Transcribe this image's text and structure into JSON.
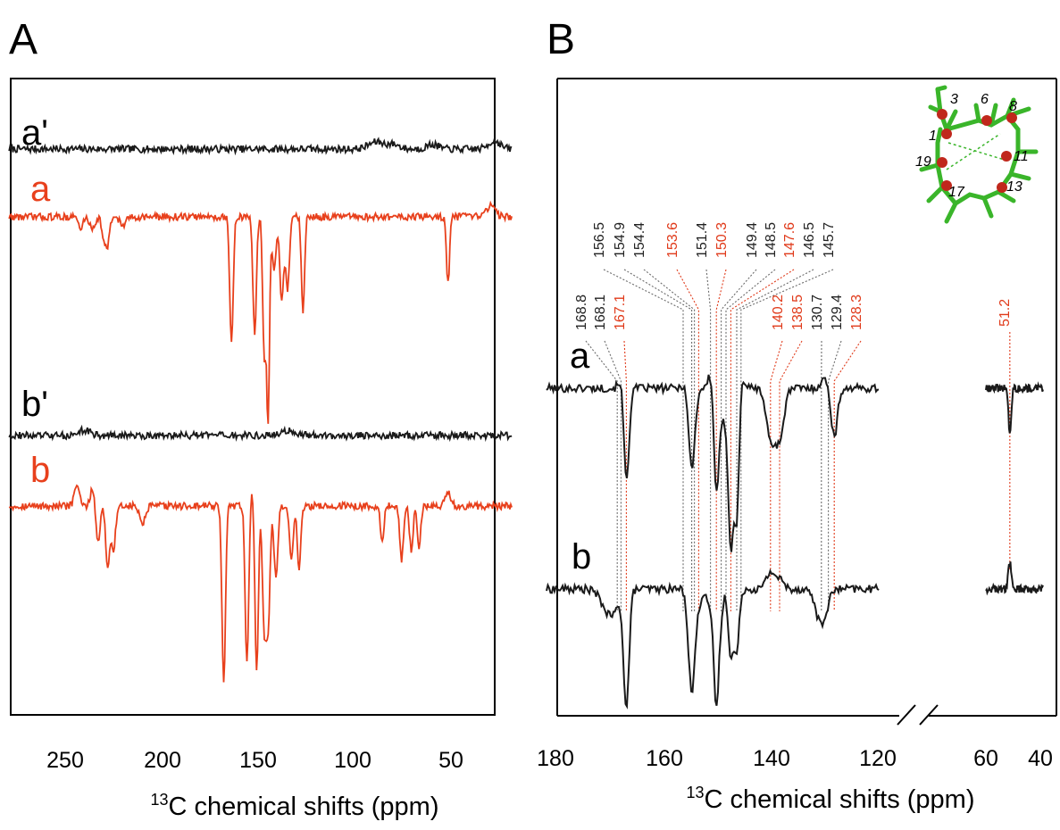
{
  "colors": {
    "black": "#1a1a1a",
    "red": "#e8401c",
    "red_label": "#e03a1a",
    "ref_black": "#6b6b6b"
  },
  "chart_data": [
    {
      "panel": "A",
      "type": "line",
      "xlabel_sup": "13",
      "xlabel_rest": "C chemical shifts (ppm)",
      "xlim": [
        279,
        19
      ],
      "x_reversed": true,
      "ticks": [
        "250",
        "200",
        "150",
        "100",
        "50"
      ],
      "tick_values": [
        250,
        200,
        150,
        100,
        50
      ],
      "grid": false,
      "series": [
        {
          "name": "a'",
          "color": "black",
          "features": [
            [
              89,
              8,
              4
            ],
            [
              80,
              5,
              3
            ],
            [
              60,
              5,
              3
            ],
            [
              28,
              9,
              3
            ]
          ]
        },
        {
          "name": "a",
          "color": "red",
          "features": [
            [
              164,
              -140,
              0.9
            ],
            [
              152,
              -130,
              0.9
            ],
            [
              147,
              -165,
              0.9
            ],
            [
              145,
              -220,
              0.7
            ],
            [
              142,
              -60,
              1.0
            ],
            [
              138,
              -95,
              1.0
            ],
            [
              135,
              -80,
              1.0
            ],
            [
              127,
              -110,
              0.8
            ],
            [
              52,
              -75,
              0.8
            ],
            [
              236,
              -12,
              1.5
            ],
            [
              230,
              -25,
              1.0
            ],
            [
              228,
              -30,
              1.0
            ],
            [
              242,
              -15,
              1.0
            ],
            [
              220,
              -10,
              1.5
            ],
            [
              148,
              15,
              0.8
            ],
            [
              30,
              12,
              2.5
            ]
          ]
        },
        {
          "name": "b'",
          "color": "black",
          "features": [
            [
              240,
              6,
              3
            ],
            [
              135,
              5,
              4
            ]
          ]
        },
        {
          "name": "b",
          "color": "red",
          "features": [
            [
              168,
              -200,
              0.9
            ],
            [
              156,
              -175,
              0.9
            ],
            [
              151,
              -185,
              0.9
            ],
            [
              147,
              -140,
              0.9
            ],
            [
              145,
              -135,
              0.9
            ],
            [
              141,
              -80,
              1.0
            ],
            [
              133,
              -60,
              1.0
            ],
            [
              129,
              -70,
              0.9
            ],
            [
              228,
              -70,
              1.0
            ],
            [
              225,
              -50,
              1.0
            ],
            [
              233,
              -40,
              1.0
            ],
            [
              86,
              -40,
              0.9
            ],
            [
              76,
              -60,
              0.9
            ],
            [
              71,
              -50,
              0.9
            ],
            [
              67,
              -45,
              0.9
            ],
            [
              244,
              25,
              1.2
            ],
            [
              236,
              20,
              1.0
            ],
            [
              153,
              22,
              0.8
            ],
            [
              52,
              15,
              1.5
            ],
            [
              210,
              -20,
              1.5
            ]
          ]
        }
      ]
    },
    {
      "panel": "B",
      "type": "line",
      "xlabel_sup": "13",
      "xlabel_rest": "C chemical shifts (ppm)",
      "x_reversed": true,
      "axis_break": true,
      "segments": [
        [
          182,
          120
        ],
        [
          60,
          39
        ]
      ],
      "ticks": [
        "180",
        "160",
        "140",
        "120",
        "60",
        "40"
      ],
      "tick_values": [
        180,
        160,
        140,
        120,
        60,
        40
      ],
      "grid": false,
      "peak_labels": [
        {
          "text": "168.8",
          "ppm": 168.8,
          "color": "black"
        },
        {
          "text": "168.1",
          "ppm": 168.1,
          "color": "black"
        },
        {
          "text": "167.1",
          "ppm": 167.1,
          "color": "red"
        },
        {
          "text": "156.5",
          "ppm": 156.5,
          "color": "black"
        },
        {
          "text": "154.9",
          "ppm": 154.9,
          "color": "black"
        },
        {
          "text": "154.4",
          "ppm": 154.4,
          "color": "black"
        },
        {
          "text": "153.6",
          "ppm": 153.6,
          "color": "red"
        },
        {
          "text": "151.4",
          "ppm": 151.4,
          "color": "black"
        },
        {
          "text": "150.3",
          "ppm": 150.3,
          "color": "red"
        },
        {
          "text": "149.4",
          "ppm": 149.4,
          "color": "black"
        },
        {
          "text": "148.5",
          "ppm": 148.5,
          "color": "black"
        },
        {
          "text": "147.6",
          "ppm": 147.6,
          "color": "red"
        },
        {
          "text": "146.5",
          "ppm": 146.5,
          "color": "black"
        },
        {
          "text": "145.7",
          "ppm": 145.7,
          "color": "black"
        },
        {
          "text": "140.2",
          "ppm": 140.2,
          "color": "red"
        },
        {
          "text": "138.5",
          "ppm": 138.5,
          "color": "red"
        },
        {
          "text": "130.7",
          "ppm": 130.7,
          "color": "black"
        },
        {
          "text": "129.4",
          "ppm": 129.4,
          "color": "black"
        },
        {
          "text": "128.3",
          "ppm": 128.3,
          "color": "red"
        },
        {
          "text": "51.2",
          "ppm": 51.2,
          "color": "red"
        }
      ],
      "series": [
        {
          "name": "a",
          "color": "black",
          "features": [
            [
              168.0,
              15,
              0.5
            ],
            [
              167.1,
              -105,
              0.5
            ],
            [
              156.0,
              8,
              0.6
            ],
            [
              154.9,
              -90,
              0.6
            ],
            [
              151.4,
              15,
              0.5
            ],
            [
              150.3,
              -115,
              0.45
            ],
            [
              149.4,
              -30,
              0.4
            ],
            [
              148.5,
              -35,
              0.4
            ],
            [
              147.6,
              -170,
              0.45
            ],
            [
              146.5,
              -150,
              0.45
            ],
            [
              145.7,
              15,
              0.6
            ],
            [
              140.2,
              -55,
              0.8
            ],
            [
              138.5,
              -55,
              0.8
            ],
            [
              130.0,
              10,
              0.8
            ],
            [
              128.3,
              -55,
              0.6
            ],
            [
              51.2,
              -50,
              0.5
            ]
          ]
        },
        {
          "name": "b",
          "color": "black",
          "features": [
            [
              167.1,
              -130,
              0.5
            ],
            [
              170,
              -30,
              1.5
            ],
            [
              154.9,
              -115,
              0.6
            ],
            [
              153.6,
              -15,
              0.5
            ],
            [
              151.4,
              -25,
              0.5
            ],
            [
              150.3,
              -130,
              0.45
            ],
            [
              149.4,
              -25,
              0.4
            ],
            [
              147.6,
              -75,
              0.45
            ],
            [
              146.5,
              -70,
              0.45
            ],
            [
              140.2,
              18,
              0.8
            ],
            [
              138.5,
              10,
              0.8
            ],
            [
              130.7,
              -40,
              1.0
            ],
            [
              51.2,
              28,
              0.6
            ]
          ]
        }
      ],
      "inset_atom_numbers": [
        "3",
        "6",
        "8",
        "1",
        "11",
        "19",
        "13",
        "17"
      ]
    }
  ]
}
